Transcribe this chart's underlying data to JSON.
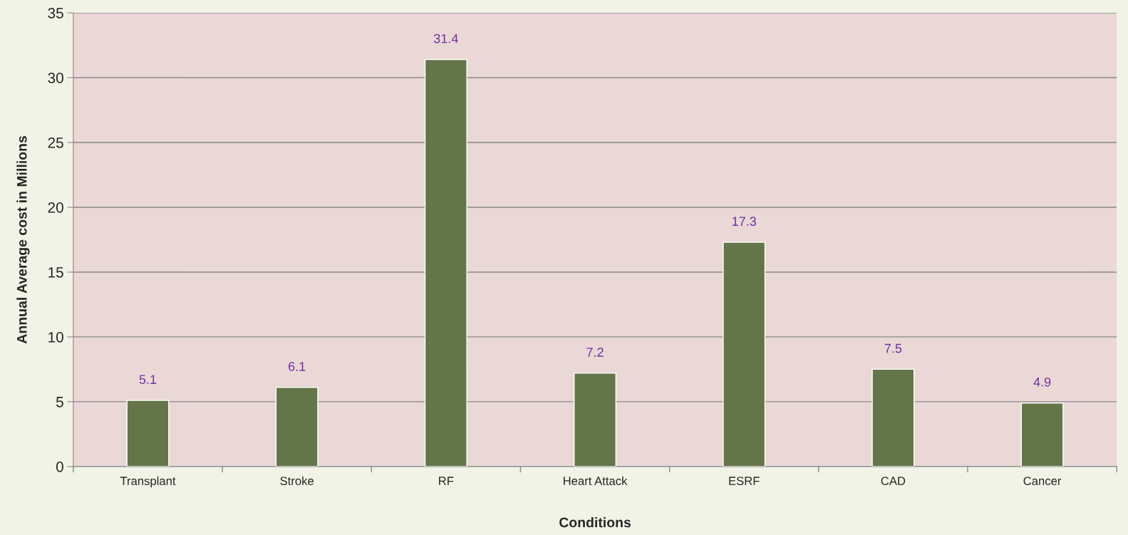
{
  "chart_data": {
    "type": "bar",
    "xlabel": "Conditions",
    "ylabel": "Annual Average cost in Millions",
    "categories": [
      "Transplant",
      "Stroke",
      "RF",
      "Heart Attack",
      "ESRF",
      "CAD",
      "Cancer"
    ],
    "values": [
      5.1,
      6.1,
      31.4,
      7.2,
      17.3,
      7.5,
      4.9
    ],
    "color": "#647549",
    "ylim": [
      0,
      35
    ],
    "yticks": [
      0,
      5,
      10,
      15,
      20,
      25,
      30,
      35
    ],
    "grid": "y",
    "data_labels": true
  }
}
